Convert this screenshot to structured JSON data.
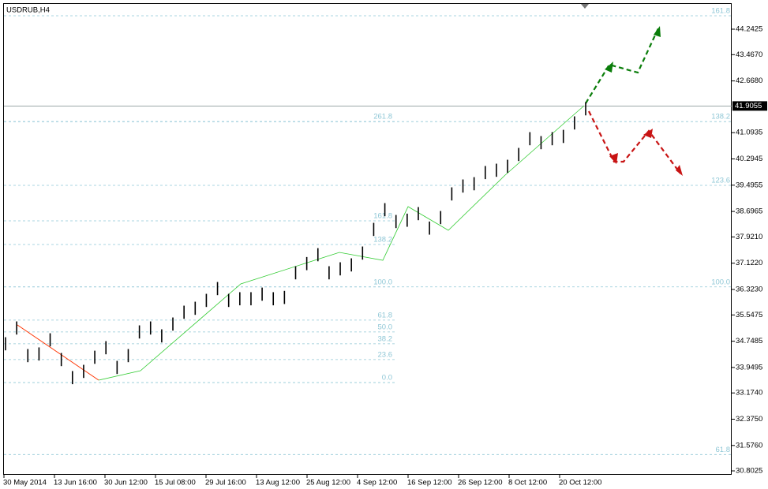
{
  "chart_data": {
    "type": "ohlc",
    "title": "USDRUB,H4",
    "categories": [
      "30 May 2014",
      "13 Jun 16:00",
      "30 Jun 12:00",
      "15 Jul 08:00",
      "29 Jul 16:00",
      "13 Aug 12:00",
      "25 Aug 12:00",
      "4 Sep 12:00",
      "16 Sep 12:00",
      "26 Sep 12:00",
      "8 Oct 12:00",
      "20 Oct 12:00"
    ],
    "bars": {
      "high": [
        34.87,
        35.35,
        34.51,
        34.56,
        34.99,
        34.39,
        33.84,
        34.03,
        34.46,
        34.75,
        34.15,
        34.51,
        35.23,
        35.35,
        35.11,
        35.47,
        35.83,
        35.95,
        36.19,
        36.55,
        36.19,
        36.24,
        36.24,
        36.38,
        36.24,
        36.28,
        37.03,
        37.31,
        37.58,
        37.03,
        37.15,
        37.27,
        37.63,
        38.35,
        38.95,
        38.59,
        38.63,
        38.83,
        38.39,
        38.71,
        39.43,
        39.67,
        39.74,
        40.08,
        40.15,
        40.27,
        40.63,
        41.11,
        40.99,
        41.11,
        41.18,
        41.59,
        42.02
      ],
      "low": [
        34.47,
        34.95,
        34.11,
        34.16,
        34.59,
        33.99,
        33.44,
        33.63,
        34.06,
        34.35,
        33.75,
        34.11,
        34.83,
        34.95,
        34.71,
        35.07,
        35.43,
        35.55,
        35.79,
        36.15,
        35.79,
        35.84,
        35.84,
        35.98,
        35.84,
        35.88,
        36.63,
        36.91,
        37.18,
        36.63,
        36.75,
        36.87,
        37.23,
        37.95,
        38.55,
        38.19,
        38.23,
        38.43,
        37.99,
        38.31,
        39.03,
        39.27,
        39.34,
        39.68,
        39.75,
        39.87,
        40.23,
        40.71,
        40.59,
        40.71,
        40.78,
        41.19,
        41.62
      ],
      "color": "#000000"
    },
    "current_price": 41.9055,
    "ylim": [
      30.683,
      45.0105
    ],
    "yticks": [
      44.2425,
      {
        "value": 43.467,
        "label": "43.4670"
      },
      {
        "value": 42.668,
        "label": "42.6680"
      },
      41.0935,
      40.2945,
      39.4955,
      38.6965,
      {
        "value": 37.921,
        "label": "37.9210"
      },
      {
        "value": 37.122,
        "label": "37.1220"
      },
      {
        "value": 36.323,
        "label": "36.3230"
      },
      35.5475,
      34.7485,
      33.9495,
      {
        "value": 33.174,
        "label": "33.1740"
      },
      {
        "value": 32.375,
        "label": "32.3750"
      },
      {
        "value": 31.576,
        "label": "31.5760"
      },
      30.8025
    ],
    "fibo_left": [
      {
        "label": "261.8",
        "price": 41.43
      },
      {
        "label": "161.8",
        "price": 38.41
      },
      {
        "label": "138.2",
        "price": 37.69
      },
      {
        "label": "100.0",
        "price": 36.4
      },
      {
        "label": "61.8",
        "price": 35.39
      },
      {
        "label": "50.0",
        "price": 35.03
      },
      {
        "label": "38.2",
        "price": 34.67
      },
      {
        "label": "23.6",
        "price": 34.19
      },
      {
        "label": "0.0",
        "price": 33.49
      }
    ],
    "fibo_right": [
      {
        "label": "161.8",
        "price": 44.65
      },
      {
        "label": "138.2",
        "price": 41.43
      },
      {
        "label": "123.6",
        "price": 39.49
      },
      {
        "label": "100.0",
        "price": 36.4
      },
      {
        "label": "61.8",
        "price": 31.3
      }
    ]
  }
}
